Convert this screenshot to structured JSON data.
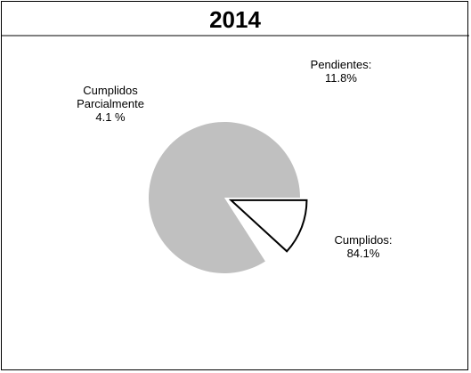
{
  "chart_data": {
    "type": "pie",
    "title": "2014",
    "slices": [
      {
        "label_lines": [
          "Cumplidos:",
          "84.1%"
        ],
        "value": 84.1,
        "color": "#c0c0c0",
        "outline": "none",
        "exploded": false
      },
      {
        "label_lines": [
          "Cumplidos",
          "Parcialmente",
          "4.1 %"
        ],
        "value": 4.1,
        "color": "#ffffff",
        "outline": "none",
        "exploded": false
      },
      {
        "label_lines": [
          "Pendientes:",
          "11.8%"
        ],
        "value": 11.8,
        "color": "#ffffff",
        "outline": "#000000",
        "exploded": true
      }
    ],
    "start_angle_deg": 0,
    "direction": "counterclockwise"
  }
}
